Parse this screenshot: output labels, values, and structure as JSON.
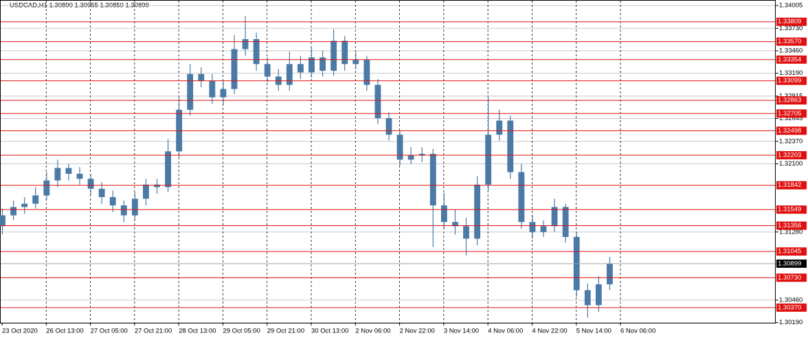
{
  "chart_data": {
    "type": "candlestick",
    "title": "USDCAD,H1  1.30890 1.30955 1.30850 1.30899",
    "series": [
      {
        "color": "#4a7aa5",
        "open": [
          1.3135,
          1.3148,
          1.3158,
          1.3162,
          1.3172,
          1.319,
          1.3205,
          1.3198,
          1.3192,
          1.318,
          1.317,
          1.316,
          1.3148,
          1.3168,
          1.3185,
          1.3182,
          1.3225,
          1.3275,
          1.3318,
          1.331,
          1.329,
          1.33,
          1.3348,
          1.336,
          1.333,
          1.3315,
          1.3305,
          1.333,
          1.332,
          1.3338,
          1.3322,
          1.3358,
          1.333,
          1.3335,
          1.3305,
          1.3265,
          1.3245,
          1.3215,
          1.322,
          1.3222,
          1.316,
          1.314,
          1.3135,
          1.312,
          1.3185,
          1.3245,
          1.3262,
          1.32,
          1.314,
          1.3128,
          1.3135,
          1.3158,
          1.3122,
          1.3058,
          1.304,
          1.3065
        ],
        "high": [
          1.3156,
          1.3166,
          1.317,
          1.3182,
          1.32,
          1.3215,
          1.321,
          1.3206,
          1.3198,
          1.3188,
          1.3178,
          1.3166,
          1.3176,
          1.3192,
          1.3192,
          1.324,
          1.329,
          1.333,
          1.3326,
          1.3318,
          1.331,
          1.3365,
          1.3388,
          1.3368,
          1.3338,
          1.3324,
          1.3345,
          1.334,
          1.335,
          1.3346,
          1.3372,
          1.3364,
          1.3345,
          1.334,
          1.3312,
          1.3272,
          1.325,
          1.323,
          1.323,
          1.3228,
          1.3175,
          1.3155,
          1.3145,
          1.3195,
          1.329,
          1.3275,
          1.3268,
          1.321,
          1.3148,
          1.3142,
          1.3168,
          1.3162,
          1.3128,
          1.3066,
          1.3075,
          1.3098
        ],
        "low": [
          1.3125,
          1.3142,
          1.315,
          1.3156,
          1.3166,
          1.3182,
          1.319,
          1.3185,
          1.3172,
          1.3162,
          1.3152,
          1.314,
          1.3142,
          1.316,
          1.3174,
          1.3176,
          1.3218,
          1.3268,
          1.3302,
          1.3282,
          1.328,
          1.3294,
          1.334,
          1.3322,
          1.3308,
          1.3298,
          1.3298,
          1.3312,
          1.3314,
          1.3315,
          1.3316,
          1.3322,
          1.3324,
          1.3298,
          1.3258,
          1.3238,
          1.3208,
          1.321,
          1.3212,
          1.311,
          1.3132,
          1.3125,
          1.31,
          1.3112,
          1.3178,
          1.3238,
          1.3192,
          1.3132,
          1.312,
          1.3122,
          1.3128,
          1.3115,
          1.305,
          1.3025,
          1.3032,
          1.3058
        ],
        "close": [
          1.3148,
          1.3158,
          1.3162,
          1.3172,
          1.319,
          1.3205,
          1.3198,
          1.3192,
          1.318,
          1.317,
          1.316,
          1.3148,
          1.3168,
          1.3185,
          1.3182,
          1.3225,
          1.3275,
          1.3318,
          1.331,
          1.329,
          1.33,
          1.3348,
          1.336,
          1.333,
          1.3315,
          1.3305,
          1.333,
          1.332,
          1.3338,
          1.3322,
          1.3358,
          1.333,
          1.3335,
          1.3305,
          1.3265,
          1.3245,
          1.3215,
          1.322,
          1.3222,
          1.316,
          1.314,
          1.3135,
          1.312,
          1.3185,
          1.3245,
          1.3262,
          1.32,
          1.314,
          1.3128,
          1.3135,
          1.3158,
          1.3122,
          1.3058,
          1.304,
          1.3065,
          1.309
        ]
      }
    ],
    "xlim": [
      0,
      70
    ],
    "xticks": [
      {
        "value": 0,
        "label": "23 Oct 2020"
      },
      {
        "value": 4,
        "label": "26 Oct 13:00"
      },
      {
        "value": 8,
        "label": "27 Oct 05:00"
      },
      {
        "value": 12,
        "label": "27 Oct 21:00"
      },
      {
        "value": 16,
        "label": "28 Oct 13:00"
      },
      {
        "value": 20,
        "label": "29 Oct 05:00"
      },
      {
        "value": 24,
        "label": "29 Oct 21:00"
      },
      {
        "value": 28,
        "label": "30 Oct 13:00"
      },
      {
        "value": 32,
        "label": "2 Nov 06:00"
      },
      {
        "value": 36,
        "label": "2 Nov 22:00"
      },
      {
        "value": 40,
        "label": "3 Nov 14:00"
      },
      {
        "value": 44,
        "label": "4 Nov 06:00"
      },
      {
        "value": 48,
        "label": "4 Nov 22:00"
      },
      {
        "value": 52,
        "label": "5 Nov 14:00"
      },
      {
        "value": 56,
        "label": "6 Nov 06:00"
      }
    ],
    "ylim": [
      1.30187,
      1.34071
    ],
    "yticks": [
      1.34005,
      {
        "value": 1.3373,
        "label": "1.33730"
      },
      {
        "value": 1.3346,
        "label": "1.33460"
      },
      {
        "value": 1.3319,
        "label": "1.33190"
      },
      1.32915,
      1.32645,
      {
        "value": 1.3237,
        "label": "1.32370"
      },
      {
        "value": 1.321,
        "label": "1.32100"
      },
      {
        "value": 1.3128,
        "label": "1.31280"
      },
      {
        "value": 1.3046,
        "label": "1.30460"
      },
      {
        "value": 1.3019,
        "label": "1.30190"
      }
    ],
    "levels": [
      1.33809,
      {
        "value": 1.3357,
        "label": "1.33570"
      },
      1.33354,
      1.33099,
      1.32863,
      1.32705,
      1.32498,
      1.32203,
      1.31842,
      1.31549,
      1.31356,
      1.31045,
      {
        "value": 1.3073,
        "label": "1.30730"
      },
      {
        "value": 1.3037,
        "label": "1.30370"
      }
    ],
    "level_color": "#e01010",
    "current_price": 1.30899,
    "grid": true
  }
}
